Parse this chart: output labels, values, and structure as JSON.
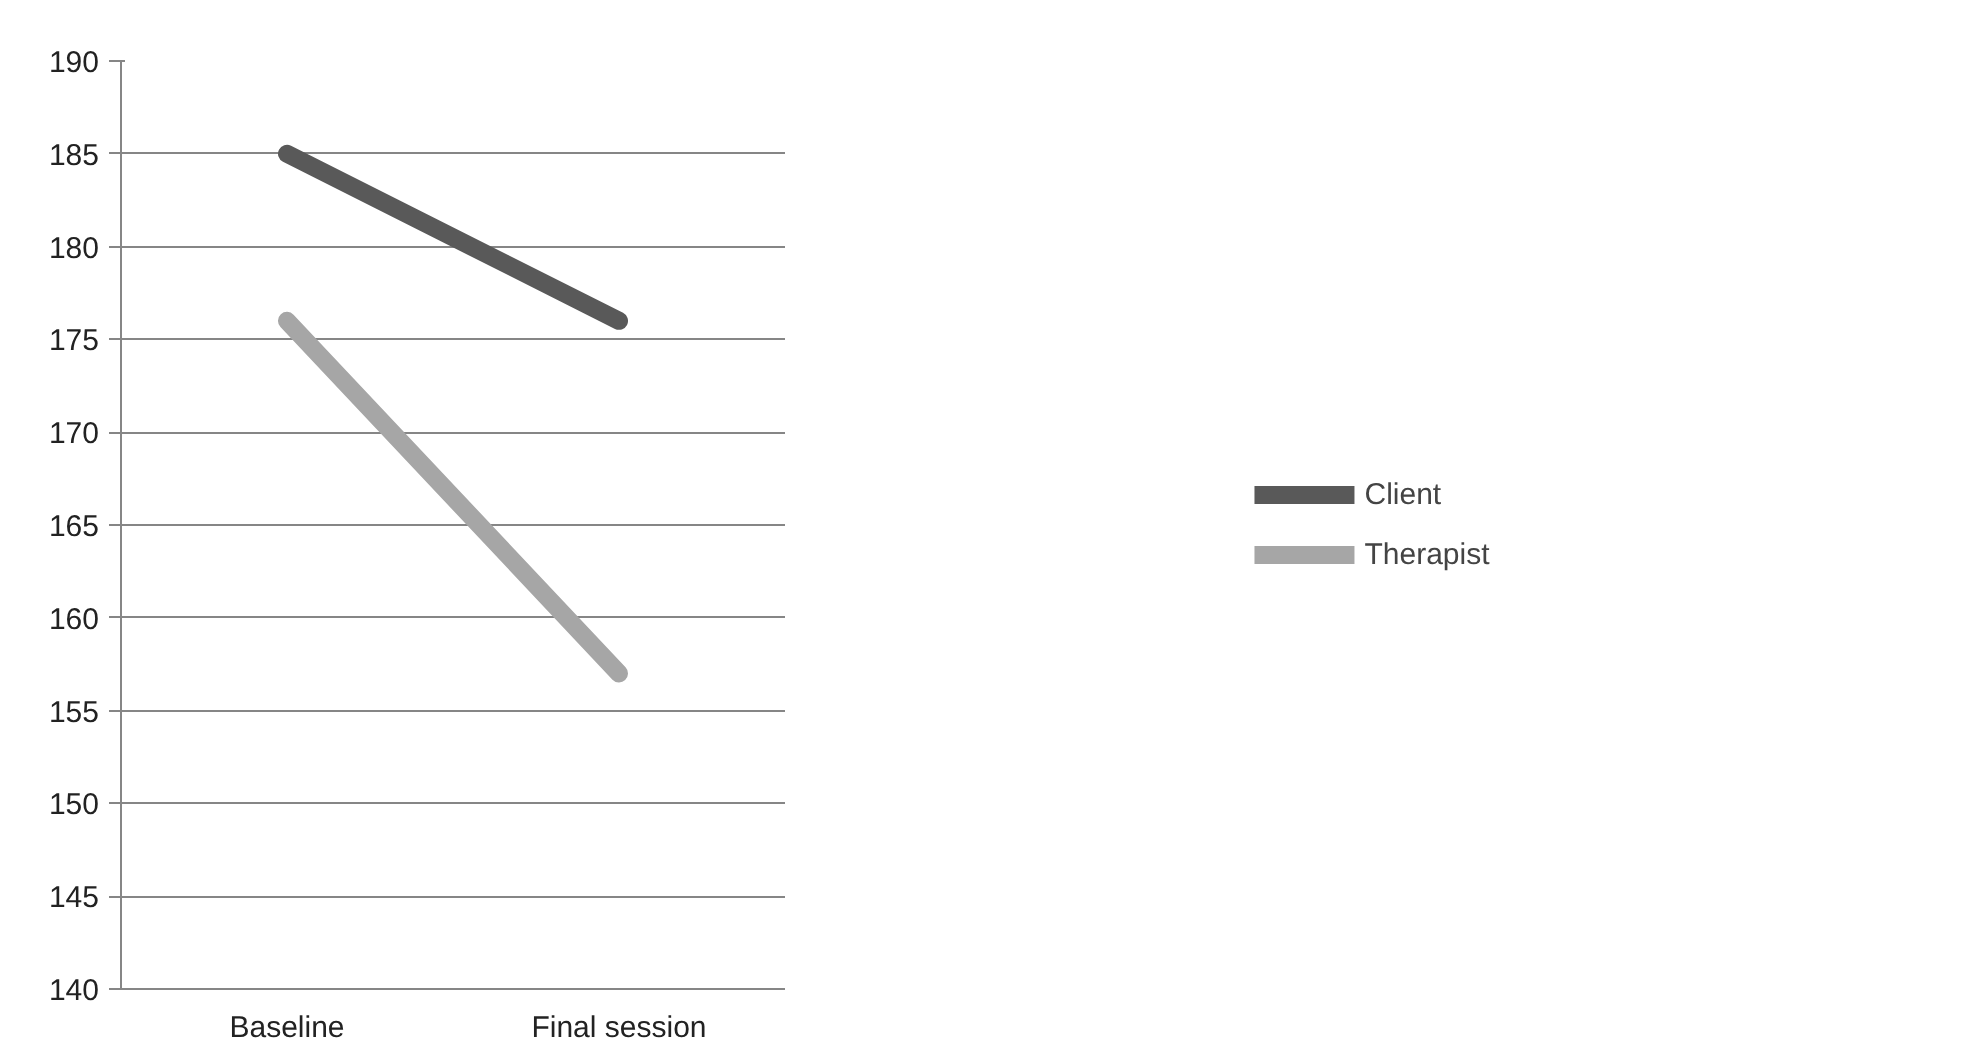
{
  "chart_data": {
    "type": "line",
    "categories": [
      "Baseline",
      "Final session"
    ],
    "series": [
      {
        "name": "Client",
        "color": "#595959",
        "values": [
          185,
          176
        ]
      },
      {
        "name": "Therapist",
        "color": "#a6a6a6",
        "values": [
          176,
          157
        ]
      }
    ],
    "ylim": [
      140,
      190
    ],
    "yticks": [
      140,
      145,
      150,
      155,
      160,
      165,
      170,
      175,
      180,
      185,
      190
    ],
    "grid": "y",
    "legend": "right",
    "marker": "none",
    "line_style": "solid"
  }
}
